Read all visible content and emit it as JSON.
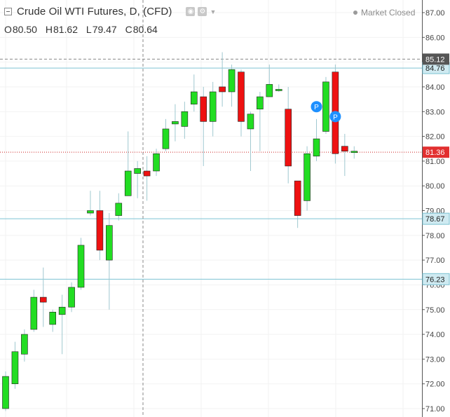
{
  "header": {
    "title": "Crude Oil WTI Futures, D, (CFD)",
    "market_status": "Market Closed",
    "ohlc": {
      "open_label": "O",
      "open": "80.50",
      "high_label": "H",
      "high": "81.62",
      "low_label": "L",
      "low": "79.47",
      "close_label": "C",
      "close": "80.64"
    }
  },
  "chart_data": {
    "type": "candlestick",
    "ylim": [
      70.8,
      87.2
    ],
    "yticks": [
      "87.00",
      "86.00",
      "85.00",
      "84.00",
      "83.00",
      "82.00",
      "81.00",
      "80.00",
      "79.00",
      "78.00",
      "77.00",
      "76.00",
      "75.00",
      "74.00",
      "73.00",
      "72.00",
      "71.00"
    ],
    "colors": {
      "up": "#22dd22",
      "down": "#ee1111",
      "wick": "#9fc8d0",
      "hline": "#7dc3d3",
      "crosshair": "#888888",
      "current": "#cc2222",
      "pattern_marker": "#1e90ff"
    },
    "horizontal_lines": [
      {
        "value": 84.76,
        "label": "84.76"
      },
      {
        "value": 78.67,
        "label": "78.67"
      },
      {
        "value": 76.23,
        "label": "76.23"
      }
    ],
    "crosshair_label": {
      "value": 85.12,
      "label": "85.12"
    },
    "current_price": {
      "value": 81.36,
      "label": "81.36"
    },
    "pattern_markers": [
      {
        "candle": 33,
        "value": 83.2,
        "label": "P"
      },
      {
        "candle": 35,
        "value": 82.8,
        "label": "P"
      }
    ],
    "candles": [
      {
        "o": 71.0,
        "h": 72.5,
        "l": 70.9,
        "c": 72.3
      },
      {
        "o": 72.0,
        "h": 73.7,
        "l": 71.8,
        "c": 73.3
      },
      {
        "o": 73.2,
        "h": 74.2,
        "l": 72.9,
        "c": 74.0
      },
      {
        "o": 74.2,
        "h": 75.8,
        "l": 74.1,
        "c": 75.5
      },
      {
        "o": 75.5,
        "h": 76.7,
        "l": 74.3,
        "c": 75.3
      },
      {
        "o": 74.4,
        "h": 75.0,
        "l": 74.1,
        "c": 74.9
      },
      {
        "o": 74.8,
        "h": 75.6,
        "l": 73.2,
        "c": 75.1
      },
      {
        "o": 75.1,
        "h": 76.1,
        "l": 74.9,
        "c": 75.9
      },
      {
        "o": 75.9,
        "h": 77.9,
        "l": 75.8,
        "c": 77.6
      },
      {
        "o": 78.9,
        "h": 79.8,
        "l": 78.8,
        "c": 79.0
      },
      {
        "o": 79.0,
        "h": 79.8,
        "l": 77.0,
        "c": 77.4
      },
      {
        "o": 77.0,
        "h": 78.9,
        "l": 75.0,
        "c": 78.4
      },
      {
        "o": 78.8,
        "h": 79.7,
        "l": 78.6,
        "c": 79.3
      },
      {
        "o": 79.6,
        "h": 82.2,
        "l": 79.6,
        "c": 80.6
      },
      {
        "o": 80.5,
        "h": 81.0,
        "l": 79.5,
        "c": 80.7
      },
      {
        "o": 80.6,
        "h": 81.2,
        "l": 79.4,
        "c": 80.4
      },
      {
        "o": 80.6,
        "h": 81.5,
        "l": 80.4,
        "c": 81.3
      },
      {
        "o": 81.5,
        "h": 82.7,
        "l": 81.4,
        "c": 82.3
      },
      {
        "o": 82.5,
        "h": 83.3,
        "l": 81.8,
        "c": 82.6
      },
      {
        "o": 82.4,
        "h": 83.4,
        "l": 81.9,
        "c": 83.0
      },
      {
        "o": 83.3,
        "h": 84.5,
        "l": 83.0,
        "c": 83.8
      },
      {
        "o": 83.6,
        "h": 84.0,
        "l": 80.8,
        "c": 82.6
      },
      {
        "o": 82.6,
        "h": 84.2,
        "l": 82.0,
        "c": 83.8
      },
      {
        "o": 84.0,
        "h": 85.4,
        "l": 83.2,
        "c": 83.8
      },
      {
        "o": 83.8,
        "h": 84.9,
        "l": 83.2,
        "c": 84.7
      },
      {
        "o": 84.6,
        "h": 84.7,
        "l": 82.0,
        "c": 82.6
      },
      {
        "o": 82.3,
        "h": 83.0,
        "l": 80.6,
        "c": 82.9
      },
      {
        "o": 83.1,
        "h": 83.8,
        "l": 81.4,
        "c": 83.6
      },
      {
        "o": 83.6,
        "h": 84.9,
        "l": 83.6,
        "c": 84.1
      },
      {
        "o": 83.9,
        "h": 84.1,
        "l": 83.8,
        "c": 83.9
      },
      {
        "o": 83.1,
        "h": 84.0,
        "l": 80.1,
        "c": 80.8
      },
      {
        "o": 80.2,
        "h": 80.2,
        "l": 78.3,
        "c": 78.8
      },
      {
        "o": 79.4,
        "h": 81.6,
        "l": 79.0,
        "c": 81.3
      },
      {
        "o": 81.2,
        "h": 82.7,
        "l": 81.0,
        "c": 81.9
      },
      {
        "o": 82.2,
        "h": 84.4,
        "l": 82.1,
        "c": 84.2
      },
      {
        "o": 84.6,
        "h": 84.9,
        "l": 80.9,
        "c": 81.3
      },
      {
        "o": 81.6,
        "h": 82.1,
        "l": 80.4,
        "c": 81.4
      },
      {
        "o": 81.4,
        "h": 81.6,
        "l": 81.1,
        "c": 81.4
      }
    ]
  }
}
